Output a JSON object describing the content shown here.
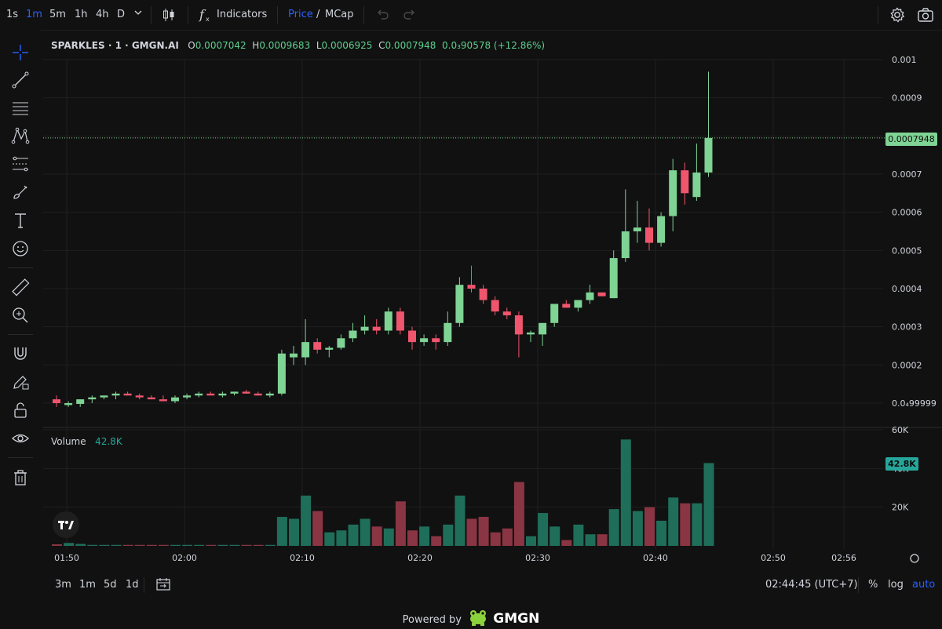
{
  "toolbar": {
    "intervals": [
      "1s",
      "1m",
      "5m",
      "1h",
      "4h",
      "D"
    ],
    "active_interval": "1m",
    "indicators_label": "Indicators",
    "price_label": "Price",
    "slash": "/",
    "mcap_label": "MCap"
  },
  "legend": {
    "symbol": "SPARKLES · 1 · GMGN.AI",
    "open_label": "O",
    "open_value": "0.0007042",
    "high_label": "H",
    "high_value": "0.0009683",
    "low_label": "L",
    "low_value": "0.0006925",
    "close_label": "C",
    "close_value": "0.0007948",
    "change": "0.0₃90578 (+12.86%)"
  },
  "volume_legend": {
    "label": "Volume",
    "value": "42.8K"
  },
  "last_price_tag": "0.0007948",
  "last_volume_tag": "42.8K",
  "bottom": {
    "ranges": [
      "3m",
      "1m",
      "5d",
      "1d"
    ],
    "clock": "02:44:45 (UTC+7)",
    "percent": "%",
    "log": "log",
    "auto": "auto"
  },
  "powered_by": {
    "text": "Powered by",
    "brand": "GMGN"
  },
  "colors": {
    "up": "#7fd394",
    "down": "#f0556e",
    "vol_up": "#1f6e5a",
    "vol_down": "#8a3543",
    "accent": "#2962ff",
    "bg": "#111111"
  },
  "chart_data": {
    "type": "candlestick",
    "price_axis": {
      "ticks": [
        "0.001",
        "0.0009",
        "0.0008",
        "0.0007",
        "0.0006",
        "0.0005",
        "0.0004",
        "0.0003",
        "0.0002",
        "0.0₄99999"
      ],
      "range": [
        0.0,
        0.00104
      ]
    },
    "volume_axis": {
      "ticks": [
        "60K",
        "40K",
        "20K"
      ],
      "range": [
        0,
        60000
      ]
    },
    "time_axis": {
      "ticks": [
        "01:50",
        "02:00",
        "02:10",
        "02:20",
        "02:30",
        "02:40",
        "02:50",
        "02:56"
      ]
    },
    "candles": [
      {
        "t": "01:50",
        "o": 0.00011,
        "h": 0.00012,
        "l": 9e-05,
        "c": 0.0001,
        "v": 800
      },
      {
        "t": "01:51",
        "o": 9.5e-05,
        "h": 0.000105,
        "l": 9e-05,
        "c": 0.0001,
        "v": 1500
      },
      {
        "t": "01:52",
        "o": 9.8e-05,
        "h": 0.00011,
        "l": 9e-05,
        "c": 0.00011,
        "v": 1000
      },
      {
        "t": "01:53",
        "o": 0.00011,
        "h": 0.00012,
        "l": 0.0001,
        "c": 0.000115,
        "v": 500
      },
      {
        "t": "01:54",
        "o": 0.000115,
        "h": 0.00012,
        "l": 0.00011,
        "c": 0.00012,
        "v": 500
      },
      {
        "t": "01:55",
        "o": 0.00012,
        "h": 0.00013,
        "l": 0.00011,
        "c": 0.000125,
        "v": 500
      },
      {
        "t": "01:56",
        "o": 0.000125,
        "h": 0.00013,
        "l": 0.00012,
        "c": 0.00012,
        "v": 500
      },
      {
        "t": "01:57",
        "o": 0.00012,
        "h": 0.000125,
        "l": 0.00011,
        "c": 0.000115,
        "v": 500
      },
      {
        "t": "01:58",
        "o": 0.000115,
        "h": 0.00012,
        "l": 0.00011,
        "c": 0.00011,
        "v": 500
      },
      {
        "t": "01:59",
        "o": 0.00011,
        "h": 0.00012,
        "l": 0.000105,
        "c": 0.000105,
        "v": 500
      },
      {
        "t": "02:00",
        "o": 0.000105,
        "h": 0.00012,
        "l": 0.0001,
        "c": 0.000115,
        "v": 500
      },
      {
        "t": "02:01",
        "o": 0.000115,
        "h": 0.000125,
        "l": 0.00011,
        "c": 0.00012,
        "v": 500
      },
      {
        "t": "02:02",
        "o": 0.00012,
        "h": 0.00013,
        "l": 0.000115,
        "c": 0.000125,
        "v": 500
      },
      {
        "t": "02:03",
        "o": 0.000125,
        "h": 0.00013,
        "l": 0.00012,
        "c": 0.00012,
        "v": 500
      },
      {
        "t": "02:04",
        "o": 0.00012,
        "h": 0.00013,
        "l": 0.000115,
        "c": 0.000125,
        "v": 500
      },
      {
        "t": "02:05",
        "o": 0.000125,
        "h": 0.00013,
        "l": 0.00012,
        "c": 0.00013,
        "v": 500
      },
      {
        "t": "02:06",
        "o": 0.00013,
        "h": 0.000135,
        "l": 0.000125,
        "c": 0.000125,
        "v": 500
      },
      {
        "t": "02:07",
        "o": 0.000125,
        "h": 0.00013,
        "l": 0.00012,
        "c": 0.00012,
        "v": 500
      },
      {
        "t": "02:08",
        "o": 0.00012,
        "h": 0.00013,
        "l": 0.000115,
        "c": 0.000125,
        "v": 500
      },
      {
        "t": "02:09",
        "o": 0.000125,
        "h": 0.00024,
        "l": 0.00012,
        "c": 0.00023,
        "v": 15000
      },
      {
        "t": "02:10",
        "o": 0.00022,
        "h": 0.00025,
        "l": 0.0002,
        "c": 0.00023,
        "v": 14000
      },
      {
        "t": "02:11",
        "o": 0.00022,
        "h": 0.00032,
        "l": 0.0002,
        "c": 0.00026,
        "v": 26000
      },
      {
        "t": "02:12",
        "o": 0.00026,
        "h": 0.00027,
        "l": 0.00023,
        "c": 0.00024,
        "v": 18000
      },
      {
        "t": "02:13",
        "o": 0.00024,
        "h": 0.00025,
        "l": 0.00022,
        "c": 0.000245,
        "v": 7000
      },
      {
        "t": "02:14",
        "o": 0.000245,
        "h": 0.00028,
        "l": 0.00024,
        "c": 0.00027,
        "v": 8000
      },
      {
        "t": "02:15",
        "o": 0.00027,
        "h": 0.00031,
        "l": 0.00026,
        "c": 0.00029,
        "v": 11000
      },
      {
        "t": "02:16",
        "o": 0.00029,
        "h": 0.00033,
        "l": 0.00028,
        "c": 0.0003,
        "v": 14000
      },
      {
        "t": "02:17",
        "o": 0.0003,
        "h": 0.00032,
        "l": 0.00028,
        "c": 0.00029,
        "v": 10000
      },
      {
        "t": "02:18",
        "o": 0.00029,
        "h": 0.00035,
        "l": 0.00028,
        "c": 0.00034,
        "v": 9000
      },
      {
        "t": "02:19",
        "o": 0.00034,
        "h": 0.00035,
        "l": 0.00028,
        "c": 0.00029,
        "v": 23000
      },
      {
        "t": "02:20",
        "o": 0.00029,
        "h": 0.0003,
        "l": 0.00024,
        "c": 0.00026,
        "v": 8000
      },
      {
        "t": "02:21",
        "o": 0.00026,
        "h": 0.00028,
        "l": 0.00025,
        "c": 0.00027,
        "v": 10000
      },
      {
        "t": "02:22",
        "o": 0.00027,
        "h": 0.00028,
        "l": 0.00024,
        "c": 0.00026,
        "v": 5000
      },
      {
        "t": "02:23",
        "o": 0.00026,
        "h": 0.00034,
        "l": 0.00025,
        "c": 0.00031,
        "v": 11000
      },
      {
        "t": "02:24",
        "o": 0.00031,
        "h": 0.00043,
        "l": 0.0003,
        "c": 0.00041,
        "v": 26000
      },
      {
        "t": "02:25",
        "o": 0.00041,
        "h": 0.00046,
        "l": 0.00039,
        "c": 0.0004,
        "v": 14000
      },
      {
        "t": "02:26",
        "o": 0.0004,
        "h": 0.00041,
        "l": 0.00036,
        "c": 0.00037,
        "v": 15000
      },
      {
        "t": "02:27",
        "o": 0.00037,
        "h": 0.00038,
        "l": 0.00033,
        "c": 0.00034,
        "v": 7000
      },
      {
        "t": "02:28",
        "o": 0.00034,
        "h": 0.00035,
        "l": 0.00032,
        "c": 0.00033,
        "v": 9000
      },
      {
        "t": "02:29",
        "o": 0.00033,
        "h": 0.00034,
        "l": 0.00022,
        "c": 0.00028,
        "v": 33000
      },
      {
        "t": "02:30",
        "o": 0.00028,
        "h": 0.00029,
        "l": 0.00026,
        "c": 0.000285,
        "v": 5000
      },
      {
        "t": "02:31",
        "o": 0.00028,
        "h": 0.00031,
        "l": 0.00025,
        "c": 0.00031,
        "v": 17000
      },
      {
        "t": "02:32",
        "o": 0.00031,
        "h": 0.00036,
        "l": 0.0003,
        "c": 0.00036,
        "v": 10000
      },
      {
        "t": "02:33",
        "o": 0.00036,
        "h": 0.00037,
        "l": 0.00035,
        "c": 0.00035,
        "v": 3000
      },
      {
        "t": "02:34",
        "o": 0.00035,
        "h": 0.00037,
        "l": 0.00034,
        "c": 0.00037,
        "v": 11000
      },
      {
        "t": "02:35",
        "o": 0.00037,
        "h": 0.00041,
        "l": 0.00036,
        "c": 0.00039,
        "v": 6000
      },
      {
        "t": "02:36",
        "o": 0.00039,
        "h": 0.00039,
        "l": 0.00038,
        "c": 0.00038,
        "v": 6000
      },
      {
        "t": "02:37",
        "o": 0.000375,
        "h": 0.0005,
        "l": 0.000375,
        "c": 0.00048,
        "v": 19000
      },
      {
        "t": "02:38",
        "o": 0.00048,
        "h": 0.00066,
        "l": 0.00047,
        "c": 0.00055,
        "v": 55000
      },
      {
        "t": "02:39",
        "o": 0.00055,
        "h": 0.00063,
        "l": 0.00052,
        "c": 0.00056,
        "v": 18000
      },
      {
        "t": "02:40",
        "o": 0.00056,
        "h": 0.00061,
        "l": 0.0005,
        "c": 0.00052,
        "v": 20000
      },
      {
        "t": "02:41",
        "o": 0.00052,
        "h": 0.0006,
        "l": 0.00051,
        "c": 0.00059,
        "v": 13000
      },
      {
        "t": "02:42",
        "o": 0.00059,
        "h": 0.00074,
        "l": 0.00055,
        "c": 0.00071,
        "v": 25000
      },
      {
        "t": "02:43",
        "o": 0.00071,
        "h": 0.00073,
        "l": 0.00062,
        "c": 0.00065,
        "v": 22000
      },
      {
        "t": "02:44",
        "o": 0.00064,
        "h": 0.00078,
        "l": 0.00063,
        "c": 0.0007042,
        "v": 22000
      },
      {
        "t": "02:45",
        "o": 0.0007042,
        "h": 0.0009683,
        "l": 0.0006925,
        "c": 0.0007948,
        "v": 42800
      }
    ]
  }
}
